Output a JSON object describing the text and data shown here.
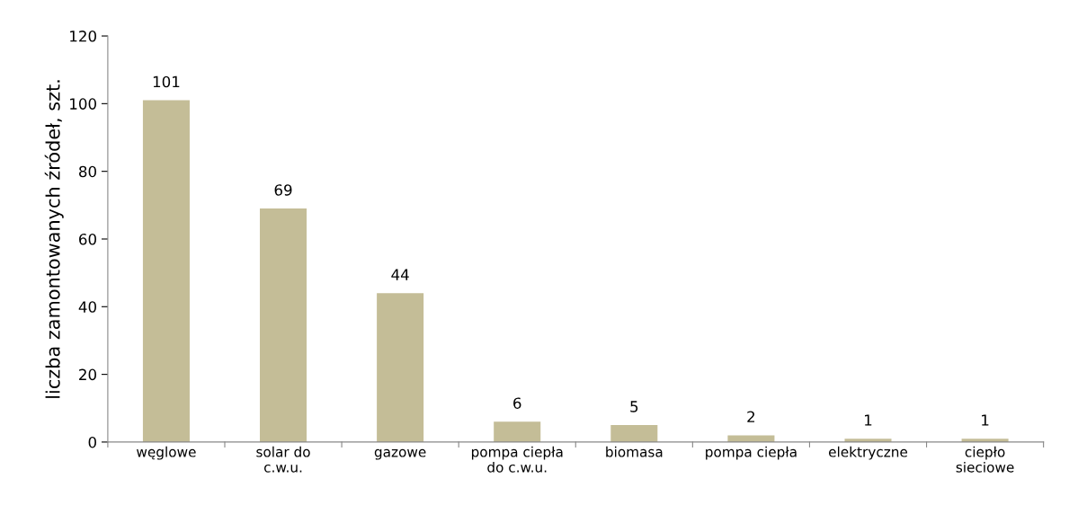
{
  "chart_data": {
    "type": "bar",
    "ylabel": "liczba zamontowanych źródeł, szt.",
    "categories": [
      "węglowe",
      "solar do\nc.w.u.",
      "gazowe",
      "pompa ciepła\ndo c.w.u.",
      "biomasa",
      "pompa ciepła",
      "elektryczne",
      "ciepło\nsieciowe"
    ],
    "values": [
      101,
      69,
      44,
      6,
      5,
      2,
      1,
      1
    ],
    "color": "#c4bd97",
    "ylim": [
      0,
      120
    ],
    "yticks": [
      0,
      20,
      40,
      60,
      80,
      100,
      120
    ],
    "grid": false,
    "data_labels": true
  }
}
